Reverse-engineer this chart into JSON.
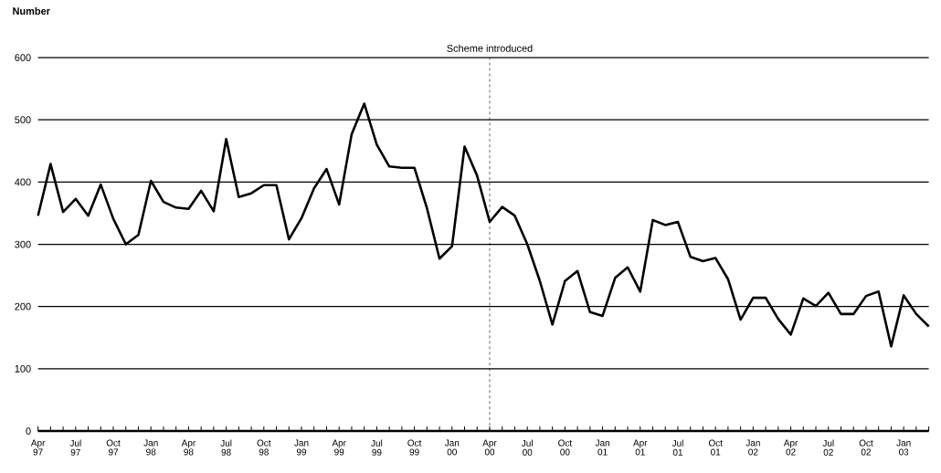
{
  "chart_data": {
    "type": "line",
    "ylabel": "Number",
    "categories": [
      "Apr 97",
      null,
      null,
      "Jul 97",
      null,
      null,
      "Oct 97",
      null,
      null,
      "Jan 98",
      null,
      null,
      "Apr 98",
      null,
      null,
      "Jul 98",
      null,
      null,
      "Oct 98",
      null,
      null,
      "Jan 99",
      null,
      null,
      "Apr 99",
      null,
      null,
      "Jul 99",
      null,
      null,
      "Oct 99",
      null,
      null,
      "Jan 00",
      null,
      null,
      "Apr 00",
      null,
      null,
      "Jul 00",
      null,
      null,
      "Oct 00",
      null,
      null,
      "Jan 01",
      null,
      null,
      "Apr 01",
      null,
      null,
      "Jul 01",
      null,
      null,
      "Oct 01",
      null,
      null,
      "Jan 02",
      null,
      null,
      "Apr 02",
      null,
      null,
      "Jul 02",
      null,
      null,
      "Oct 02",
      null,
      null,
      "Jan 03",
      null,
      null
    ],
    "series": [
      {
        "color": "#000000",
        "values": [
          346,
          429,
          352,
          373,
          346,
          396,
          341,
          300,
          315,
          402,
          368,
          359,
          357,
          386,
          353,
          469,
          376,
          382,
          395,
          395,
          308,
          342,
          390,
          421,
          364,
          477,
          526,
          460,
          425,
          423,
          423,
          358,
          277,
          297,
          457,
          410,
          336,
          360,
          346,
          300,
          241,
          171,
          241,
          257,
          191,
          185,
          246,
          263,
          224,
          339,
          331,
          336,
          280,
          273,
          278,
          244,
          179,
          214,
          214,
          180,
          155,
          213,
          201,
          222,
          188,
          188,
          217,
          224,
          136,
          218,
          188,
          168
        ]
      }
    ],
    "ylim": [
      0,
      600
    ],
    "yticks": [
      0,
      100,
      200,
      300,
      400,
      500,
      600
    ],
    "grid": "y",
    "marker": "none",
    "line_style": "solid",
    "ref_lines": [
      {
        "axis": "x",
        "value": "Apr 00",
        "label": "Scheme introduced",
        "line_style": "dashed",
        "color": "#000000"
      }
    ]
  }
}
